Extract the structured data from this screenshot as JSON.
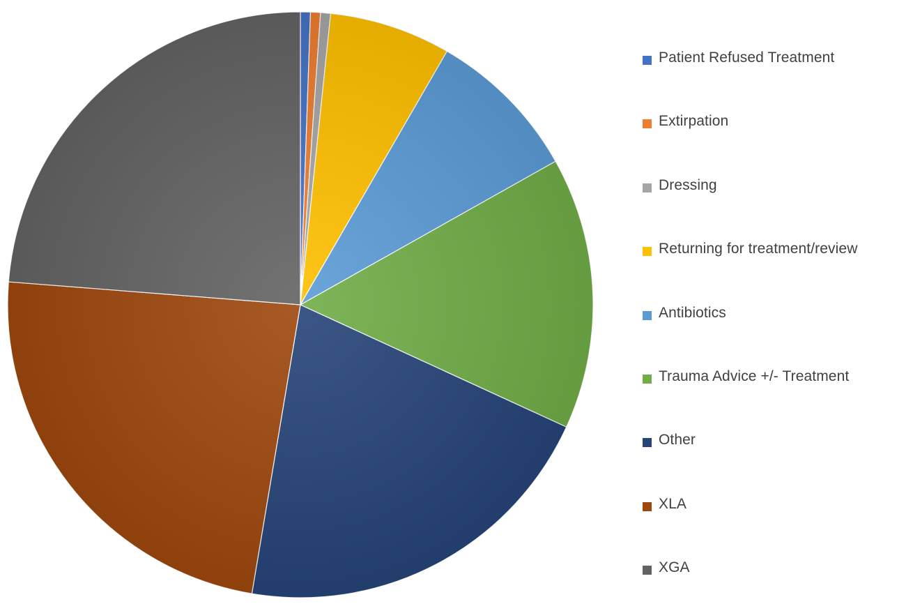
{
  "chart_data": {
    "type": "pie",
    "title": "",
    "start_angle_deg": 0,
    "direction": "clockwise",
    "legend_position": "right",
    "slices": [
      {
        "label": "Patient Refused Treatment",
        "value": 0.55,
        "color": "#4472C4"
      },
      {
        "label": "Extirpation",
        "value": 0.55,
        "color": "#ED7D31"
      },
      {
        "label": "Dressing",
        "value": 0.55,
        "color": "#A5A5A5"
      },
      {
        "label": "Returning for treatment/review",
        "value": 6.7,
        "color": "#FFC000"
      },
      {
        "label": "Antibiotics",
        "value": 8.5,
        "color": "#5B9BD5"
      },
      {
        "label": "Trauma Advice +/- Treatment",
        "value": 15.0,
        "color": "#70AD47"
      },
      {
        "label": "Other",
        "value": 20.8,
        "color": "#264478"
      },
      {
        "label": "XLA",
        "value": 23.6,
        "color": "#9E480E"
      },
      {
        "label": "XGA",
        "value": 23.75,
        "color": "#636363"
      }
    ]
  }
}
